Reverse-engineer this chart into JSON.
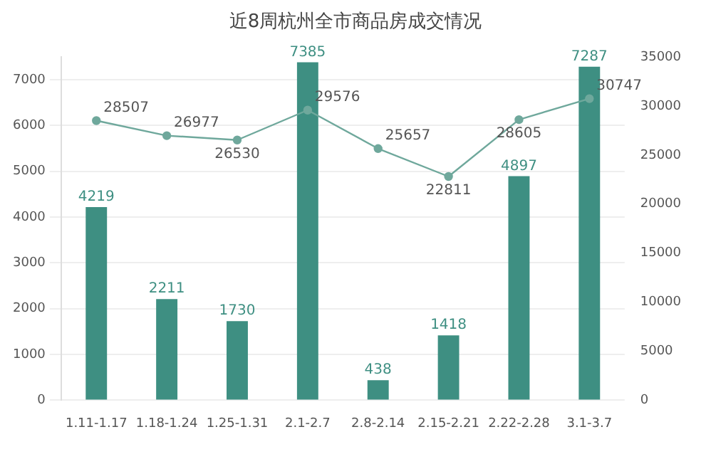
{
  "chart_data": {
    "type": "bar",
    "title": "近8周杭州全市商品房成交情况",
    "categories": [
      "1.11-1.17",
      "1.18-1.24",
      "1.25-1.31",
      "2.1-2.7",
      "2.8-2.14",
      "2.15-2.21",
      "2.22-2.28",
      "3.1-3.7"
    ],
    "series": [
      {
        "color": "#3e8f82",
        "values": [
          4219,
          2211,
          1730,
          7385,
          438,
          1418,
          4897,
          7287
        ]
      },
      {
        "type": "line",
        "axis": "y2",
        "color": "#6fa89c",
        "marker": "circle",
        "values": [
          28507,
          26977,
          26530,
          29576,
          25657,
          22811,
          28605,
          30747
        ]
      }
    ],
    "ylim": [
      0,
      7500
    ],
    "yticks": [
      0,
      1000,
      2000,
      3000,
      4000,
      5000,
      6000,
      7000
    ],
    "y2lim": [
      0,
      35000
    ],
    "y2ticks": [
      0,
      5000,
      10000,
      15000,
      20000,
      25000,
      30000,
      35000
    ],
    "grid": "y",
    "data_labels": true,
    "legend": false
  }
}
